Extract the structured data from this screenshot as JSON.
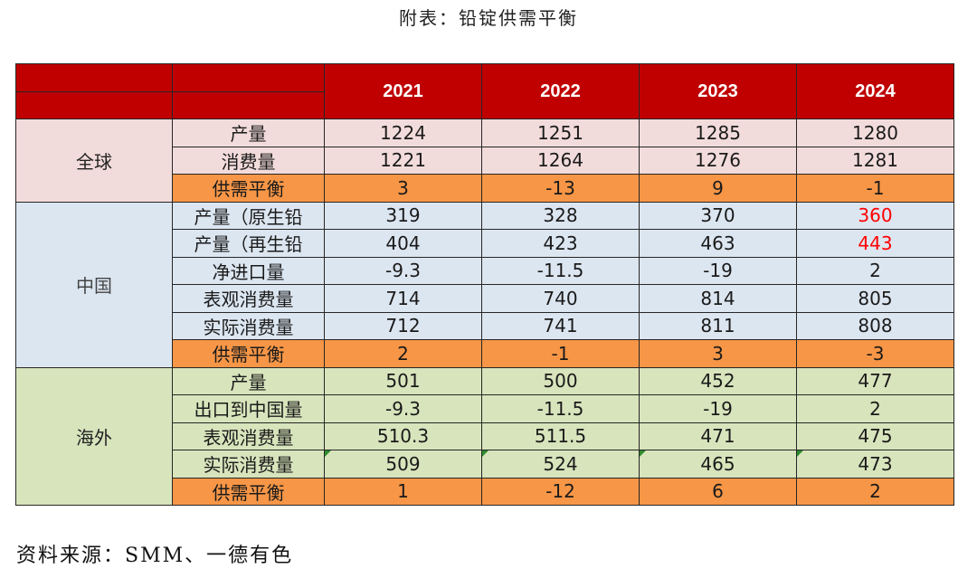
{
  "title": "附表：铅锭供需平衡",
  "source": "资料来源：SMM、一德有色",
  "colors": {
    "header": "#c00000",
    "global_bg": "#f2dcdb",
    "china_bg": "#dce6f1",
    "overseas_bg": "#d8e4bc",
    "balance_bg": "#f79646",
    "highlight_text": "#ff0000"
  },
  "years": [
    "2021",
    "2022",
    "2023",
    "2024"
  ],
  "groups": [
    {
      "region": "全球",
      "rows": [
        {
          "label": "产量",
          "values": [
            "1224",
            "1251",
            "1285",
            "1280"
          ]
        },
        {
          "label": "消费量",
          "values": [
            "1221",
            "1264",
            "1276",
            "1281"
          ]
        },
        {
          "label": "供需平衡",
          "values": [
            "3",
            "-13",
            "9",
            "-1"
          ]
        }
      ]
    },
    {
      "region": "中国",
      "rows": [
        {
          "label": "产量（原生铅",
          "values": [
            "319",
            "328",
            "370",
            "360"
          ]
        },
        {
          "label": "产量（再生铅",
          "values": [
            "404",
            "423",
            "463",
            "443"
          ]
        },
        {
          "label": "净进口量",
          "values": [
            "-9.3",
            "-11.5",
            "-19",
            "2"
          ]
        },
        {
          "label": "表观消费量",
          "values": [
            "714",
            "740",
            "814",
            "805"
          ]
        },
        {
          "label": "实际消费量",
          "values": [
            "712",
            "741",
            "811",
            "808"
          ]
        },
        {
          "label": "供需平衡",
          "values": [
            "2",
            "-1",
            "3",
            "-3"
          ]
        }
      ]
    },
    {
      "region": "海外",
      "rows": [
        {
          "label": "产量",
          "values": [
            "501",
            "500",
            "452",
            "477"
          ]
        },
        {
          "label": "出口到中国量",
          "values": [
            "-9.3",
            "-11.5",
            "-19",
            "2"
          ]
        },
        {
          "label": "表观消费量",
          "values": [
            "510.3",
            "511.5",
            "471",
            "475"
          ]
        },
        {
          "label": "实际消费量",
          "values": [
            "509",
            "524",
            "465",
            "473"
          ]
        },
        {
          "label": "供需平衡",
          "values": [
            "1",
            "-12",
            "6",
            "2"
          ]
        }
      ]
    }
  ]
}
